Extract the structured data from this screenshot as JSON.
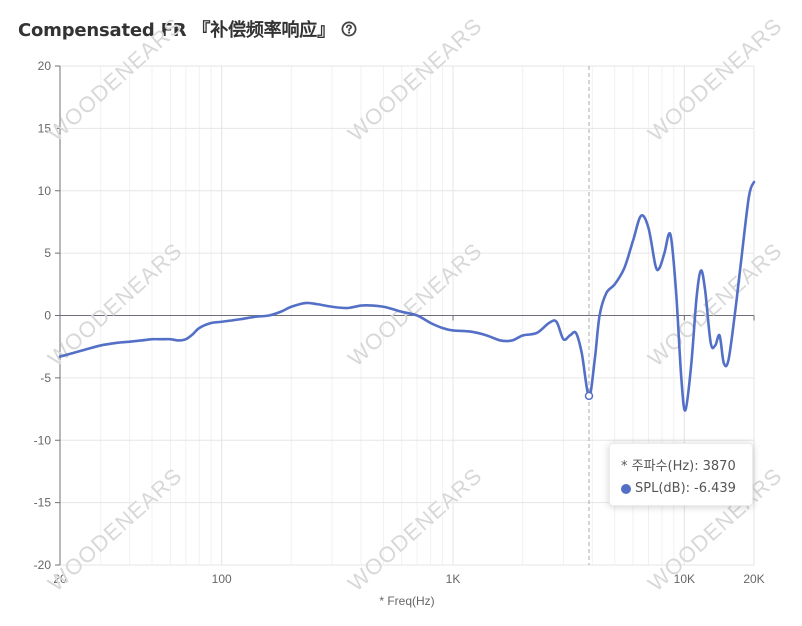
{
  "header": {
    "title": "Compensated FR 『补偿频率响应』",
    "help_icon": "question-circle-icon"
  },
  "watermark": "WOODENEARS",
  "tooltip": {
    "row1_label": "* 주파수(Hz):",
    "row1_value": "3870",
    "row2_label": "SPL(dB):",
    "row2_value": "-6.439"
  },
  "colors": {
    "line": "#5470c6",
    "axis": "#6e7079",
    "grid": "#e6e6e6"
  },
  "chart_data": {
    "type": "line",
    "title": "Compensated FR 『补偿频率响应』",
    "xlabel": "* Freq(Hz)",
    "ylabel": "",
    "x_scale": "log",
    "xlim": [
      20,
      20000
    ],
    "ylim": [
      -20,
      20
    ],
    "x_ticks": [
      {
        "value": 20,
        "label": "20"
      },
      {
        "value": 100,
        "label": "100"
      },
      {
        "value": 1000,
        "label": "1K"
      },
      {
        "value": 10000,
        "label": "10K"
      },
      {
        "value": 20000,
        "label": "20K"
      }
    ],
    "y_ticks": [
      -20,
      -15,
      -10,
      -5,
      0,
      5,
      10,
      15,
      20
    ],
    "grid": true,
    "highlight": {
      "x": 3870,
      "y": -6.439
    },
    "series": [
      {
        "name": "SPL(dB)",
        "points": [
          [
            20,
            -3.3
          ],
          [
            25,
            -2.8
          ],
          [
            30,
            -2.4
          ],
          [
            35,
            -2.2
          ],
          [
            40,
            -2.1
          ],
          [
            45,
            -2.0
          ],
          [
            50,
            -1.9
          ],
          [
            55,
            -1.9
          ],
          [
            60,
            -1.9
          ],
          [
            65,
            -2.0
          ],
          [
            70,
            -1.9
          ],
          [
            75,
            -1.5
          ],
          [
            80,
            -1.0
          ],
          [
            90,
            -0.6
          ],
          [
            100,
            -0.5
          ],
          [
            120,
            -0.3
          ],
          [
            140,
            -0.1
          ],
          [
            160,
            0.0
          ],
          [
            180,
            0.3
          ],
          [
            200,
            0.7
          ],
          [
            230,
            1.0
          ],
          [
            260,
            0.9
          ],
          [
            300,
            0.7
          ],
          [
            350,
            0.6
          ],
          [
            400,
            0.8
          ],
          [
            450,
            0.8
          ],
          [
            500,
            0.7
          ],
          [
            550,
            0.5
          ],
          [
            600,
            0.3
          ],
          [
            700,
            0.0
          ],
          [
            800,
            -0.6
          ],
          [
            900,
            -1.0
          ],
          [
            1000,
            -1.2
          ],
          [
            1200,
            -1.3
          ],
          [
            1400,
            -1.6
          ],
          [
            1600,
            -2.0
          ],
          [
            1800,
            -2.0
          ],
          [
            2000,
            -1.6
          ],
          [
            2300,
            -1.4
          ],
          [
            2600,
            -0.6
          ],
          [
            2800,
            -0.5
          ],
          [
            3000,
            -1.9
          ],
          [
            3200,
            -1.6
          ],
          [
            3400,
            -1.4
          ],
          [
            3600,
            -3.0
          ],
          [
            3870,
            -6.439
          ],
          [
            4100,
            -3.5
          ],
          [
            4300,
            0.0
          ],
          [
            4600,
            1.8
          ],
          [
            5000,
            2.5
          ],
          [
            5500,
            3.8
          ],
          [
            6000,
            6.0
          ],
          [
            6500,
            8.0
          ],
          [
            7000,
            7.0
          ],
          [
            7500,
            4.0
          ],
          [
            7800,
            3.8
          ],
          [
            8200,
            5.0
          ],
          [
            8700,
            6.5
          ],
          [
            9200,
            2.0
          ],
          [
            9700,
            -5.0
          ],
          [
            10100,
            -7.6
          ],
          [
            10700,
            -4.0
          ],
          [
            11300,
            1.5
          ],
          [
            11800,
            3.6
          ],
          [
            12300,
            2.0
          ],
          [
            13000,
            -2.2
          ],
          [
            13600,
            -2.4
          ],
          [
            14200,
            -1.6
          ],
          [
            14800,
            -3.8
          ],
          [
            15500,
            -3.6
          ],
          [
            16500,
            0.0
          ],
          [
            17500,
            4.0
          ],
          [
            19000,
            9.5
          ],
          [
            20000,
            10.7
          ]
        ]
      }
    ]
  }
}
